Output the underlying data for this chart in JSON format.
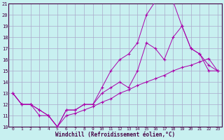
{
  "xlabel": "Windchill (Refroidissement éolien,°C)",
  "xlim": [
    -0.5,
    23.5
  ],
  "ylim": [
    10,
    21
  ],
  "xticks": [
    0,
    1,
    2,
    3,
    4,
    5,
    6,
    7,
    8,
    9,
    10,
    11,
    12,
    13,
    14,
    15,
    16,
    17,
    18,
    19,
    20,
    21,
    22,
    23
  ],
  "yticks": [
    10,
    11,
    12,
    13,
    14,
    15,
    16,
    17,
    18,
    19,
    20,
    21
  ],
  "background_color": "#c8f0f0",
  "grid_color": "#aaaacc",
  "line_color": "#aa00aa",
  "line1_x": [
    0,
    1,
    2,
    3,
    4,
    5,
    6,
    7,
    8,
    9,
    10,
    11,
    12,
    13,
    14,
    15,
    16,
    17,
    18,
    19,
    20,
    21,
    22,
    23
  ],
  "line1_y": [
    13,
    12,
    12,
    11,
    11,
    10,
    11.5,
    11.5,
    12,
    12,
    13,
    13.5,
    14,
    13.5,
    15,
    17.5,
    17,
    16,
    18,
    19,
    17,
    16.5,
    15,
    15
  ],
  "line2_x": [
    0,
    1,
    2,
    3,
    4,
    5,
    6,
    7,
    8,
    9,
    10,
    11,
    12,
    13,
    14,
    15,
    16,
    17,
    18,
    19,
    20,
    21,
    22,
    23
  ],
  "line2_y": [
    13,
    12,
    12,
    11.5,
    11,
    10,
    11.5,
    11.5,
    12,
    12,
    13.5,
    15,
    16,
    16.5,
    17.5,
    20,
    21.2,
    21.2,
    21.2,
    19,
    17,
    16.5,
    15.5,
    15
  ],
  "line3_x": [
    0,
    1,
    2,
    3,
    4,
    5,
    6,
    7,
    8,
    9,
    10,
    11,
    12,
    13,
    14,
    15,
    16,
    17,
    18,
    19,
    20,
    21,
    22,
    23
  ],
  "line3_y": [
    13,
    12,
    12,
    11.5,
    11,
    10,
    11.0,
    11.2,
    11.5,
    11.8,
    12.2,
    12.5,
    13.0,
    13.3,
    13.7,
    14.0,
    14.3,
    14.6,
    15.0,
    15.3,
    15.5,
    15.8,
    16.1,
    15.0
  ]
}
